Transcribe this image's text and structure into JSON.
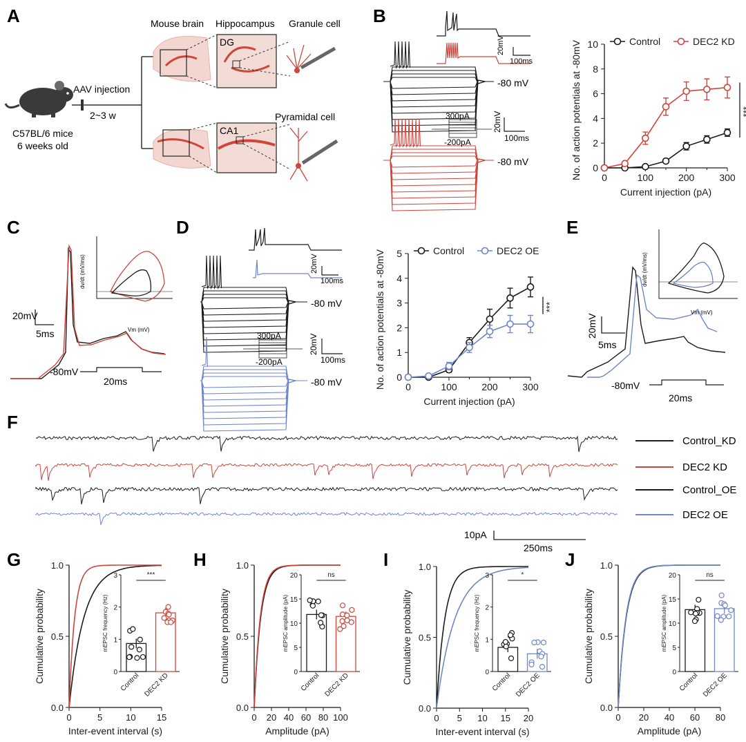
{
  "colors": {
    "control": "#1a1a1a",
    "kd": "#d0443a",
    "oe": "#6f86c8",
    "brain_pink": "#f2b9b9",
    "tissue": "#efd9d3"
  },
  "panel_labels": {
    "A": "A",
    "B": "B",
    "C": "C",
    "D": "D",
    "E": "E",
    "F": "F",
    "G": "G",
    "H": "H",
    "I": "I",
    "J": "J"
  },
  "panelA": {
    "mouse_label_1": "C57BL/6 mice",
    "mouse_label_2": "6 weeks old",
    "injection_label": "AAV injection",
    "time_label": "2~3 w",
    "col_mouse_brain": "Mouse brain",
    "col_hippocampus": "Hippocampus",
    "col_granule": "Granule cell",
    "dg_label": "DG",
    "ca1_label": "CA1",
    "pyramidal_label": "Pyramidal cell"
  },
  "panelB": {
    "scale_inset_v": "20mV",
    "scale_inset_t": "100ms",
    "scale_v": "20mV",
    "scale_t": "100ms",
    "protocol_top": "300pA",
    "protocol_bottom": "-200pA",
    "holding_1": "-80 mV",
    "holding_2": "-80 mV"
  },
  "panelC": {
    "scale_v": "20mV",
    "scale_t": "5ms",
    "holding": "-80mV",
    "duration": "20ms",
    "inset_ylabel": "dv/dt (mV/ms)",
    "inset_xlabel": "Vm (mV)"
  },
  "panelD": {
    "scale_inset_v": "20mV",
    "scale_inset_t": "100ms",
    "scale_v": "20mV",
    "scale_t": "100ms",
    "protocol_top": "300pA",
    "protocol_bottom": "-200pA",
    "holding_1": "-80 mV",
    "holding_2": "-80 mV"
  },
  "panelE": {
    "scale_v": "20mV",
    "scale_t": "5ms",
    "holding": "-80mV",
    "duration": "20ms",
    "inset_ylabel": "dv/dt (mV/ms)",
    "inset_xlabel": "Vm (mV)"
  },
  "panelF": {
    "legend": [
      "Control_KD",
      "DEC2 KD",
      "Control_OE",
      "DEC2 OE"
    ],
    "scale_amp": "10pA",
    "scale_time": "250ms"
  },
  "chart_data": [
    {
      "id": "B",
      "type": "line",
      "xlabel": "Current injection (pA)",
      "ylabel": "No. of action potentials at -80mV",
      "xlim": [
        0,
        300
      ],
      "ylim": [
        0,
        10
      ],
      "xticks": [
        0,
        100,
        200,
        300
      ],
      "yticks": [
        0,
        2,
        4,
        6,
        8,
        10
      ],
      "x": [
        0,
        50,
        100,
        150,
        200,
        250,
        300
      ],
      "series": [
        {
          "name": "Control",
          "color": "#1a1a1a",
          "values": [
            0,
            0,
            0.1,
            0.55,
            1.75,
            2.3,
            2.85
          ],
          "err": [
            0,
            0,
            0.05,
            0.1,
            0.3,
            0.3,
            0.3
          ]
        },
        {
          "name": "DEC2 KD",
          "color": "#d0443a",
          "values": [
            0,
            0.35,
            2.4,
            4.95,
            6.2,
            6.35,
            6.5
          ],
          "err": [
            0,
            0.15,
            0.5,
            0.7,
            0.75,
            0.85,
            0.85
          ]
        }
      ],
      "significance": "***"
    },
    {
      "id": "D",
      "type": "line",
      "xlabel": "Current injection (pA)",
      "ylabel": "No. of action potentials at -80mV",
      "xlim": [
        0,
        300
      ],
      "ylim": [
        0,
        5
      ],
      "xticks": [
        0,
        100,
        200,
        300
      ],
      "yticks": [
        0,
        1,
        2,
        3,
        4,
        5
      ],
      "x": [
        0,
        50,
        100,
        150,
        200,
        250,
        300
      ],
      "series": [
        {
          "name": "Control",
          "color": "#1a1a1a",
          "values": [
            0,
            0,
            0.3,
            1.4,
            2.35,
            3.2,
            3.65
          ],
          "err": [
            0,
            0.03,
            0.1,
            0.2,
            0.4,
            0.4,
            0.4
          ]
        },
        {
          "name": "DEC2 OE",
          "color": "#6f86c8",
          "values": [
            0,
            0.05,
            0.45,
            1.2,
            1.85,
            2.15,
            2.15
          ],
          "err": [
            0,
            0.03,
            0.15,
            0.2,
            0.25,
            0.35,
            0.35
          ]
        }
      ],
      "significance": "***"
    },
    {
      "id": "G",
      "type": "line",
      "xlabel": "Inter-event interval (s)",
      "ylabel": "Cumulative probability",
      "xlim": [
        0,
        15
      ],
      "ylim": [
        0,
        1
      ],
      "xticks": [
        0,
        5,
        10,
        15
      ],
      "yticks": [
        0.0,
        0.5,
        1.0
      ],
      "inset": {
        "type": "bar",
        "ylabel": "mEPSC frequency (Hz)",
        "categories": [
          "Control",
          "DEC2 KD"
        ],
        "values": [
          0.87,
          1.82
        ],
        "ylim": [
          0,
          3
        ],
        "yticks": [
          0,
          1,
          2,
          3
        ],
        "significance": "***"
      }
    },
    {
      "id": "H",
      "type": "line",
      "xlabel": "Amplitude (pA)",
      "ylabel": "Cumulative probability",
      "xlim": [
        0,
        100
      ],
      "ylim": [
        0,
        1
      ],
      "xticks": [
        0,
        20,
        40,
        60,
        80,
        100
      ],
      "yticks": [
        0.0,
        0.5,
        1.0
      ],
      "inset": {
        "type": "bar",
        "ylabel": "mEPSC amplitude (pA)",
        "categories": [
          "Control",
          "DEC2 KD"
        ],
        "values": [
          11.8,
          11.4
        ],
        "ylim": [
          0,
          20
        ],
        "yticks": [
          0,
          5,
          10,
          15,
          20
        ],
        "significance": "ns"
      }
    },
    {
      "id": "I",
      "type": "line",
      "xlabel": "Inter-event interval (s)",
      "ylabel": "Cumulative probability",
      "xlim": [
        0,
        20
      ],
      "ylim": [
        0,
        1
      ],
      "xticks": [
        0,
        5,
        10,
        15,
        20
      ],
      "yticks": [
        0.0,
        0.5,
        1.0
      ],
      "inset": {
        "type": "bar",
        "ylabel": "mEPSC frequency (Hz)",
        "categories": [
          "Control",
          "DEC2 OE"
        ],
        "values": [
          0.75,
          0.55
        ],
        "ylim": [
          0,
          3
        ],
        "yticks": [
          0,
          1,
          2,
          3
        ],
        "significance": "*"
      }
    },
    {
      "id": "J",
      "type": "line",
      "xlabel": "Amplitude (pA)",
      "ylabel": "Cumulative probability",
      "xlim": [
        0,
        80
      ],
      "ylim": [
        0,
        1
      ],
      "xticks": [
        0,
        20,
        40,
        60,
        80
      ],
      "yticks": [
        0.0,
        0.5,
        1.0
      ],
      "inset": {
        "type": "bar",
        "ylabel": "mEPSC amplitude (pA)",
        "categories": [
          "Control",
          "DEC2 OE"
        ],
        "values": [
          12.8,
          13.0
        ],
        "ylim": [
          0,
          20
        ],
        "yticks": [
          0,
          5,
          10,
          15,
          20
        ],
        "significance": "ns"
      }
    }
  ]
}
